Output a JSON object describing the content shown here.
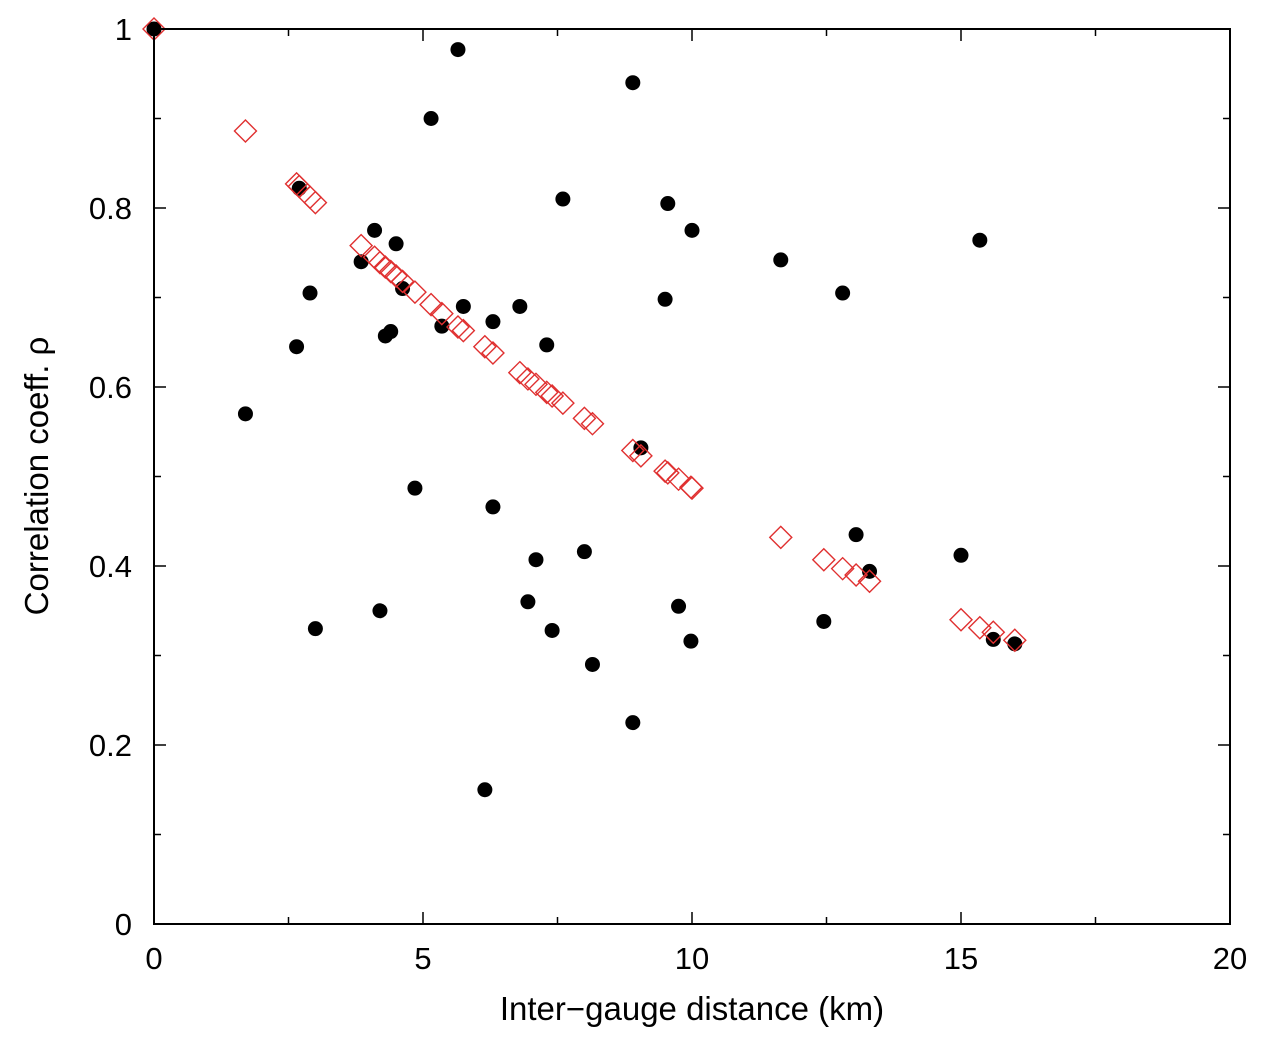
{
  "chart_data": {
    "type": "scatter",
    "title": "",
    "xlabel": "Inter−gauge distance (km)",
    "ylabel": "Correlation coeff. ρ",
    "xlim": [
      0,
      20
    ],
    "ylim": [
      0,
      1
    ],
    "x_ticks": [
      0,
      5,
      10,
      15,
      20
    ],
    "y_ticks": [
      0,
      0.2,
      0.4,
      0.6,
      0.8,
      1
    ],
    "x_tick_labels": [
      "0",
      "5",
      "10",
      "15",
      "20"
    ],
    "y_tick_labels": [
      "0",
      "0.2",
      "0.4",
      "0.6",
      "0.8",
      "1"
    ],
    "grid": false,
    "legend": "none",
    "series": [
      {
        "marker": "filled-circle",
        "color": "#000000",
        "points": [
          [
            0,
            1.0
          ],
          [
            1.7,
            0.57
          ],
          [
            2.65,
            0.645
          ],
          [
            2.7,
            0.822
          ],
          [
            2.9,
            0.705
          ],
          [
            3.0,
            0.33
          ],
          [
            3.85,
            0.74
          ],
          [
            4.1,
            0.775
          ],
          [
            4.2,
            0.35
          ],
          [
            4.3,
            0.657
          ],
          [
            4.4,
            0.662
          ],
          [
            4.5,
            0.76
          ],
          [
            4.62,
            0.71
          ],
          [
            4.85,
            0.487
          ],
          [
            5.15,
            0.9
          ],
          [
            5.35,
            0.668
          ],
          [
            5.65,
            0.977
          ],
          [
            5.75,
            0.69
          ],
          [
            6.15,
            0.15
          ],
          [
            6.3,
            0.466
          ],
          [
            6.3,
            0.673
          ],
          [
            6.8,
            0.69
          ],
          [
            6.95,
            0.36
          ],
          [
            7.1,
            0.407
          ],
          [
            7.3,
            0.647
          ],
          [
            7.4,
            0.328
          ],
          [
            7.6,
            0.81
          ],
          [
            8.0,
            0.416
          ],
          [
            8.15,
            0.29
          ],
          [
            8.9,
            0.94
          ],
          [
            8.9,
            0.225
          ],
          [
            9.05,
            0.532
          ],
          [
            9.5,
            0.698
          ],
          [
            9.55,
            0.805
          ],
          [
            9.75,
            0.355
          ],
          [
            9.98,
            0.316
          ],
          [
            10.0,
            0.775
          ],
          [
            11.65,
            0.742
          ],
          [
            12.45,
            0.338
          ],
          [
            12.8,
            0.705
          ],
          [
            13.05,
            0.435
          ],
          [
            13.3,
            0.394
          ],
          [
            15.0,
            0.412
          ],
          [
            15.35,
            0.764
          ],
          [
            15.6,
            0.318
          ],
          [
            16.0,
            0.313
          ]
        ]
      },
      {
        "marker": "open-diamond",
        "color": "#e03030",
        "points": [
          [
            0,
            1.0
          ],
          [
            1.7,
            0.886
          ],
          [
            2.65,
            0.827
          ],
          [
            2.7,
            0.824
          ],
          [
            2.9,
            0.812
          ],
          [
            3.0,
            0.806
          ],
          [
            3.85,
            0.758
          ],
          [
            4.1,
            0.745
          ],
          [
            4.2,
            0.739
          ],
          [
            4.3,
            0.734
          ],
          [
            4.4,
            0.729
          ],
          [
            4.5,
            0.724
          ],
          [
            4.62,
            0.718
          ],
          [
            4.85,
            0.706
          ],
          [
            5.15,
            0.692
          ],
          [
            5.35,
            0.682
          ],
          [
            5.65,
            0.667
          ],
          [
            5.75,
            0.663
          ],
          [
            6.15,
            0.645
          ],
          [
            6.3,
            0.638
          ],
          [
            6.8,
            0.616
          ],
          [
            6.95,
            0.609
          ],
          [
            7.1,
            0.603
          ],
          [
            7.3,
            0.594
          ],
          [
            7.4,
            0.59
          ],
          [
            7.6,
            0.582
          ],
          [
            8.0,
            0.565
          ],
          [
            8.15,
            0.559
          ],
          [
            8.9,
            0.529
          ],
          [
            9.05,
            0.523
          ],
          [
            9.5,
            0.506
          ],
          [
            9.55,
            0.504
          ],
          [
            9.75,
            0.497
          ],
          [
            9.98,
            0.488
          ],
          [
            10.0,
            0.487
          ],
          [
            11.65,
            0.432
          ],
          [
            12.45,
            0.407
          ],
          [
            12.8,
            0.397
          ],
          [
            13.05,
            0.39
          ],
          [
            13.3,
            0.383
          ],
          [
            15.0,
            0.34
          ],
          [
            15.35,
            0.331
          ],
          [
            15.6,
            0.326
          ],
          [
            16.0,
            0.317
          ]
        ]
      }
    ]
  }
}
